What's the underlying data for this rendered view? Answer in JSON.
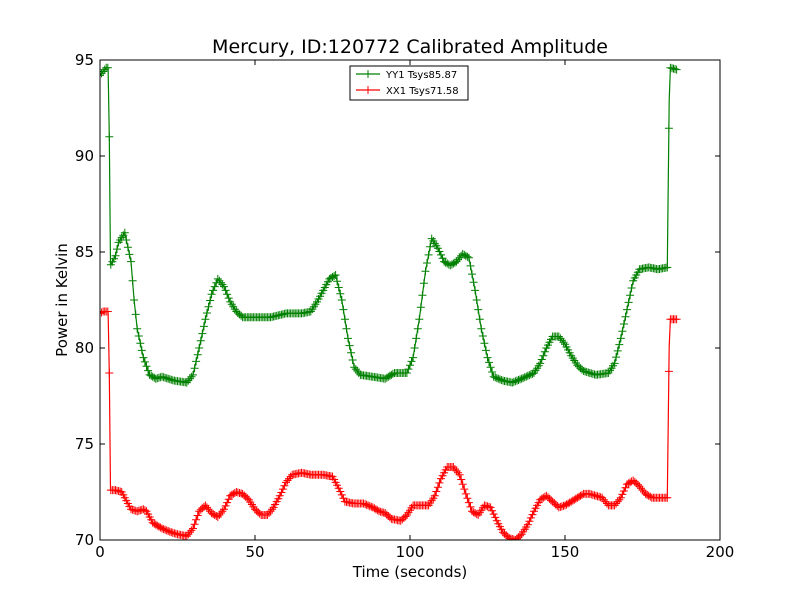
{
  "chart_data": {
    "type": "line",
    "title": "Mercury, ID:120772 Calibrated Amplitude",
    "xlabel": "Time (seconds)",
    "ylabel": "Power in Kelvin",
    "xlim": [
      0,
      200
    ],
    "ylim": [
      70,
      95
    ],
    "xticks": [
      "0",
      "50",
      "100",
      "150",
      "200"
    ],
    "yticks": [
      "70",
      "75",
      "80",
      "85",
      "90",
      "95"
    ],
    "grid": false,
    "legend_position": "top-center",
    "marker": "+",
    "series": [
      {
        "name": "YY1 Tsys85.87",
        "color": "#008000",
        "points": [
          [
            0,
            94.2
          ],
          [
            1,
            94.4
          ],
          [
            2,
            94.6
          ],
          [
            2.6,
            94.6
          ],
          [
            3,
            91.0
          ],
          [
            3.4,
            84.3
          ],
          [
            5,
            84.8
          ],
          [
            6,
            85.5
          ],
          [
            8,
            86.0
          ],
          [
            10,
            84.5
          ],
          [
            11,
            82.5
          ],
          [
            12,
            81.0
          ],
          [
            14,
            79.5
          ],
          [
            16,
            78.6
          ],
          [
            18,
            78.4
          ],
          [
            20,
            78.5
          ],
          [
            24,
            78.3
          ],
          [
            28,
            78.2
          ],
          [
            30,
            78.6
          ],
          [
            32,
            80.0
          ],
          [
            34,
            81.5
          ],
          [
            36,
            82.8
          ],
          [
            38,
            83.6
          ],
          [
            40,
            83.2
          ],
          [
            42,
            82.4
          ],
          [
            44,
            81.9
          ],
          [
            46,
            81.6
          ],
          [
            50,
            81.6
          ],
          [
            55,
            81.6
          ],
          [
            60,
            81.8
          ],
          [
            65,
            81.8
          ],
          [
            68,
            81.9
          ],
          [
            70,
            82.4
          ],
          [
            72,
            83.0
          ],
          [
            74,
            83.6
          ],
          [
            76,
            83.8
          ],
          [
            78,
            82.5
          ],
          [
            80,
            80.5
          ],
          [
            82,
            79.0
          ],
          [
            84,
            78.6
          ],
          [
            88,
            78.5
          ],
          [
            92,
            78.4
          ],
          [
            95,
            78.7
          ],
          [
            99,
            78.7
          ],
          [
            101,
            79.5
          ],
          [
            103,
            81.5
          ],
          [
            105,
            84.0
          ],
          [
            107,
            85.7
          ],
          [
            109,
            85.2
          ],
          [
            111,
            84.5
          ],
          [
            113,
            84.3
          ],
          [
            115,
            84.5
          ],
          [
            117,
            84.9
          ],
          [
            119,
            84.7
          ],
          [
            121,
            83.0
          ],
          [
            123,
            81.0
          ],
          [
            125,
            79.5
          ],
          [
            127,
            78.5
          ],
          [
            130,
            78.3
          ],
          [
            133,
            78.2
          ],
          [
            136,
            78.4
          ],
          [
            140,
            78.7
          ],
          [
            142,
            79.2
          ],
          [
            144,
            80.0
          ],
          [
            146,
            80.6
          ],
          [
            148,
            80.6
          ],
          [
            150,
            80.2
          ],
          [
            152,
            79.6
          ],
          [
            154,
            79.1
          ],
          [
            156,
            78.8
          ],
          [
            160,
            78.6
          ],
          [
            164,
            78.7
          ],
          [
            166,
            79.2
          ],
          [
            168,
            80.5
          ],
          [
            170,
            82.0
          ],
          [
            172,
            83.5
          ],
          [
            174,
            84.1
          ],
          [
            177,
            84.2
          ],
          [
            180,
            84.1
          ],
          [
            183,
            84.2
          ],
          [
            183.6,
            92.9
          ],
          [
            184,
            94.6
          ],
          [
            186,
            94.5
          ]
        ]
      },
      {
        "name": "XX1 Tsys71.58",
        "color": "#ff0000",
        "points": [
          [
            0,
            81.8
          ],
          [
            1,
            81.9
          ],
          [
            2,
            81.9
          ],
          [
            2.6,
            81.9
          ],
          [
            3,
            78.7
          ],
          [
            3.4,
            72.6
          ],
          [
            5,
            72.6
          ],
          [
            7,
            72.5
          ],
          [
            8,
            72.2
          ],
          [
            10,
            71.6
          ],
          [
            12,
            71.5
          ],
          [
            14,
            71.6
          ],
          [
            15,
            71.5
          ],
          [
            17,
            70.9
          ],
          [
            20,
            70.6
          ],
          [
            23,
            70.4
          ],
          [
            25,
            70.3
          ],
          [
            28,
            70.2
          ],
          [
            30,
            70.6
          ],
          [
            32,
            71.5
          ],
          [
            34,
            71.8
          ],
          [
            36,
            71.4
          ],
          [
            38,
            71.2
          ],
          [
            40,
            71.6
          ],
          [
            42,
            72.3
          ],
          [
            44,
            72.5
          ],
          [
            46,
            72.4
          ],
          [
            48,
            72.1
          ],
          [
            50,
            71.6
          ],
          [
            52,
            71.3
          ],
          [
            54,
            71.3
          ],
          [
            56,
            71.7
          ],
          [
            58,
            72.3
          ],
          [
            60,
            73.0
          ],
          [
            62,
            73.4
          ],
          [
            65,
            73.5
          ],
          [
            68,
            73.4
          ],
          [
            72,
            73.4
          ],
          [
            75,
            73.3
          ],
          [
            77,
            72.7
          ],
          [
            79,
            72.0
          ],
          [
            82,
            71.9
          ],
          [
            85,
            71.9
          ],
          [
            88,
            71.7
          ],
          [
            90,
            71.5
          ],
          [
            92,
            71.4
          ],
          [
            94,
            71.1
          ],
          [
            97,
            71.0
          ],
          [
            99,
            71.3
          ],
          [
            101,
            71.8
          ],
          [
            104,
            71.8
          ],
          [
            106,
            71.8
          ],
          [
            108,
            72.3
          ],
          [
            110,
            73.2
          ],
          [
            112,
            73.8
          ],
          [
            114,
            73.8
          ],
          [
            116,
            73.4
          ],
          [
            118,
            72.4
          ],
          [
            120,
            71.5
          ],
          [
            122,
            71.3
          ],
          [
            124,
            71.8
          ],
          [
            126,
            71.7
          ],
          [
            128,
            71.0
          ],
          [
            130,
            70.4
          ],
          [
            132,
            70.1
          ],
          [
            134,
            70.0
          ],
          [
            136,
            70.3
          ],
          [
            138,
            70.8
          ],
          [
            140,
            71.5
          ],
          [
            142,
            72.1
          ],
          [
            144,
            72.3
          ],
          [
            146,
            72.0
          ],
          [
            148,
            71.7
          ],
          [
            150,
            71.8
          ],
          [
            152,
            72.0
          ],
          [
            154,
            72.2
          ],
          [
            156,
            72.4
          ],
          [
            158,
            72.4
          ],
          [
            160,
            72.3
          ],
          [
            162,
            72.2
          ],
          [
            164,
            71.8
          ],
          [
            166,
            71.8
          ],
          [
            168,
            72.2
          ],
          [
            170,
            72.9
          ],
          [
            172,
            73.1
          ],
          [
            174,
            72.8
          ],
          [
            176,
            72.4
          ],
          [
            178,
            72.2
          ],
          [
            181,
            72.2
          ],
          [
            183,
            72.2
          ],
          [
            183.6,
            80.1
          ],
          [
            184,
            81.5
          ],
          [
            186,
            81.5
          ]
        ]
      }
    ]
  }
}
